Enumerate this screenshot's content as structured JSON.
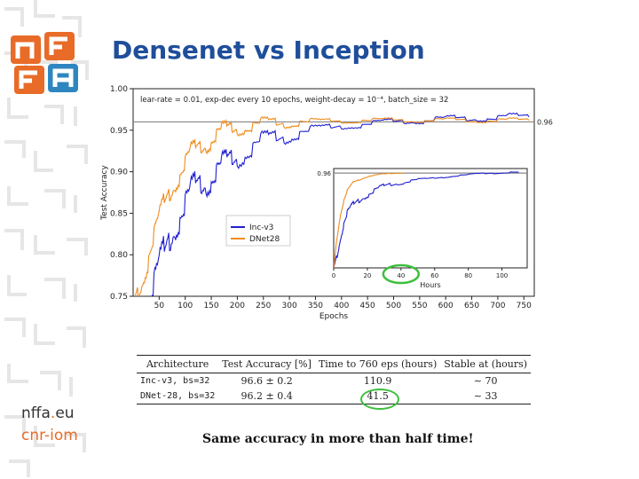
{
  "slide": {
    "title": "Densenet vs Inception",
    "conclusion": "Same accuracy in more than half time!",
    "partners": {
      "nffa_prefix": "nffa",
      "nffa_dot": ".",
      "nffa_suffix": "eu",
      "cnr_iom": "cnr-iom"
    }
  },
  "colors": {
    "title": "#1f4e9a",
    "inc": "#2020d0",
    "dnet": "#f08c1c",
    "ring": "#3cbf3c",
    "logo_orange": "#e86b28",
    "logo_blue": "#2e86c1"
  },
  "chart_data": [
    {
      "type": "line",
      "annotation": "lear-rate = 0.01, exp-dec every 10 epochs, weight-decay = 10⁻⁴, batch_size = 32",
      "xlabel": "Epochs",
      "ylabel": "Test Accuracy",
      "xlim": [
        0,
        770
      ],
      "ylim": [
        0.75,
        1.0
      ],
      "xticks": [
        50,
        100,
        150,
        200,
        250,
        300,
        350,
        400,
        450,
        500,
        550,
        600,
        650,
        700,
        750
      ],
      "yticks": [
        0.75,
        0.8,
        0.85,
        0.9,
        0.95,
        1.0
      ],
      "reference_line": {
        "y": 0.96,
        "label": "0.96"
      },
      "legend": {
        "placement": "center-left"
      },
      "series": [
        {
          "name": "Inc-v3",
          "color": "#2020d0",
          "x": [
            0,
            10,
            20,
            30,
            40,
            50,
            60,
            70,
            80,
            90,
            100,
            110,
            120,
            130,
            140,
            150,
            160,
            170,
            180,
            190,
            200,
            215,
            230,
            245,
            260,
            275,
            290,
            305,
            320,
            340,
            360,
            380,
            400,
            420,
            440,
            460,
            480,
            500,
            520,
            540,
            560,
            580,
            600,
            620,
            640,
            660,
            680,
            700,
            720,
            740,
            760
          ],
          "y": [
            0.72,
            0.73,
            0.74,
            0.75,
            0.76,
            0.78,
            0.8,
            0.82,
            0.84,
            0.85,
            0.86,
            0.87,
            0.88,
            0.885,
            0.89,
            0.895,
            0.9,
            0.905,
            0.91,
            0.915,
            0.92,
            0.925,
            0.93,
            0.935,
            0.938,
            0.94,
            0.943,
            0.945,
            0.947,
            0.949,
            0.951,
            0.953,
            0.955,
            0.956,
            0.957,
            0.958,
            0.959,
            0.96,
            0.961,
            0.962,
            0.962,
            0.963,
            0.963,
            0.964,
            0.964,
            0.965,
            0.965,
            0.965,
            0.966,
            0.966,
            0.966
          ]
        },
        {
          "name": "DNet28",
          "color": "#f08c1c",
          "x": [
            0,
            10,
            20,
            30,
            40,
            50,
            60,
            70,
            80,
            90,
            100,
            110,
            120,
            130,
            140,
            150,
            160,
            170,
            180,
            190,
            200,
            215,
            230,
            245,
            260,
            275,
            290,
            305,
            320,
            340,
            360,
            380,
            400,
            420,
            440,
            460,
            480,
            500,
            520,
            540,
            560,
            580,
            600,
            620,
            640,
            660,
            680,
            700,
            720,
            740,
            760
          ],
          "y": [
            0.74,
            0.76,
            0.78,
            0.8,
            0.82,
            0.84,
            0.86,
            0.875,
            0.89,
            0.9,
            0.91,
            0.92,
            0.925,
            0.93,
            0.935,
            0.94,
            0.945,
            0.948,
            0.95,
            0.952,
            0.954,
            0.955,
            0.956,
            0.957,
            0.958,
            0.958,
            0.959,
            0.959,
            0.96,
            0.96,
            0.96,
            0.961,
            0.961,
            0.961,
            0.962,
            0.962,
            0.962,
            0.962,
            0.962,
            0.962,
            0.962,
            0.962,
            0.962,
            0.962,
            0.962,
            0.962,
            0.962,
            0.962,
            0.962,
            0.962,
            0.962
          ]
        }
      ]
    },
    {
      "type": "line",
      "inset": true,
      "xlabel": "Hours",
      "xlim": [
        0,
        115
      ],
      "ylim": [
        0.75,
        0.97
      ],
      "xticks": [
        0,
        20,
        40,
        60,
        80,
        100
      ],
      "reference_line": {
        "y": 0.96,
        "label": "0.96"
      },
      "highlight_tick": 40,
      "series": [
        {
          "name": "Inc-v3",
          "color": "#2020d0",
          "x": [
            0,
            2,
            4,
            6,
            8,
            10,
            12,
            15,
            18,
            21,
            24,
            27,
            30,
            34,
            38,
            42,
            46,
            50,
            55,
            60,
            65,
            70,
            75,
            80,
            85,
            90,
            95,
            100,
            105,
            110
          ],
          "y": [
            0.75,
            0.78,
            0.82,
            0.85,
            0.87,
            0.88,
            0.89,
            0.9,
            0.91,
            0.915,
            0.92,
            0.925,
            0.93,
            0.935,
            0.938,
            0.94,
            0.943,
            0.945,
            0.947,
            0.949,
            0.951,
            0.953,
            0.955,
            0.956,
            0.958,
            0.959,
            0.96,
            0.961,
            0.962,
            0.962
          ]
        },
        {
          "name": "DNet28",
          "color": "#f08c1c",
          "x": [
            0,
            2,
            4,
            6,
            8,
            10,
            12,
            15,
            18,
            21,
            24,
            27,
            30,
            34,
            38,
            41.5
          ],
          "y": [
            0.75,
            0.82,
            0.87,
            0.9,
            0.92,
            0.93,
            0.94,
            0.945,
            0.95,
            0.953,
            0.955,
            0.957,
            0.958,
            0.959,
            0.96,
            0.961
          ]
        }
      ]
    }
  ],
  "table": {
    "headers": [
      "Architecture",
      "Test Accuracy [%]",
      "Time to 760 eps (hours)",
      "Stable at (hours)"
    ],
    "rows": [
      {
        "arch": "Inc-v3, bs=32",
        "acc": "96.6 ± 0.2",
        "time": "110.9",
        "stable": "∼ 70"
      },
      {
        "arch": "DNet-28, bs=32",
        "acc": "96.2 ± 0.4",
        "time": "41.5",
        "stable": "∼ 33"
      }
    ]
  }
}
